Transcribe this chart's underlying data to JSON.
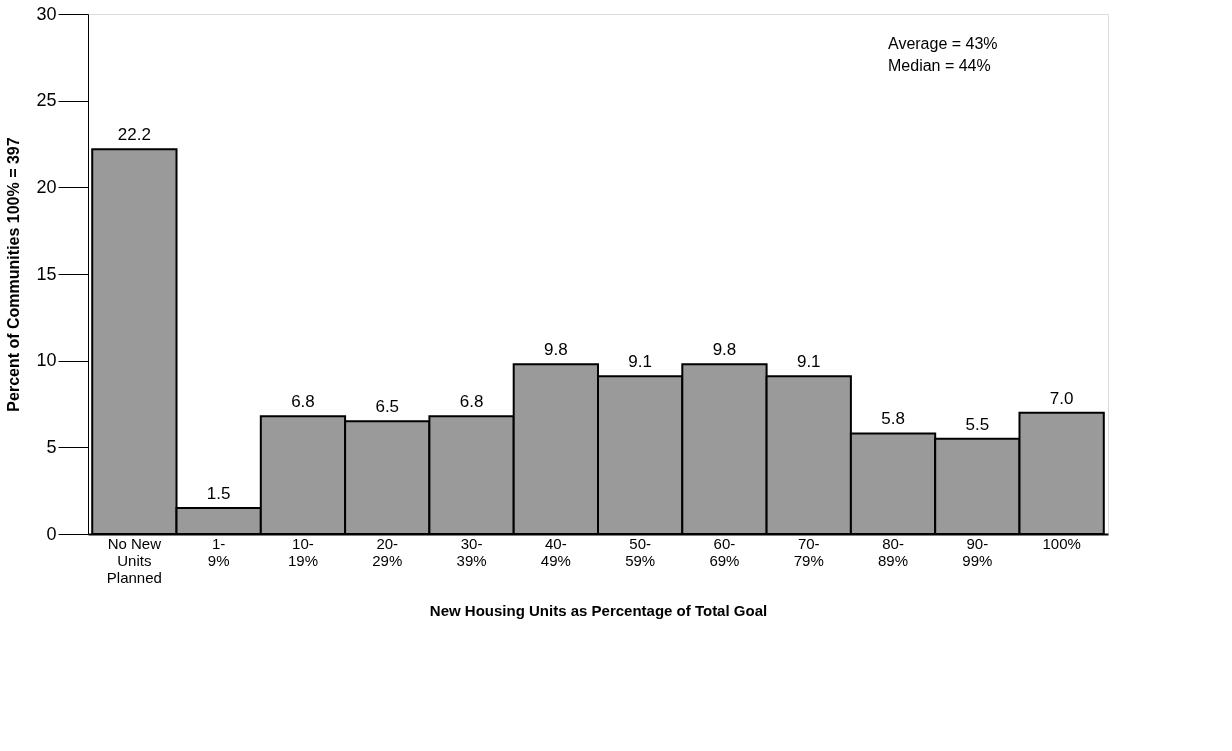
{
  "chart_data": {
    "type": "bar",
    "xlabel": "New Housing Units as Percentage of Total Goal",
    "ylabel": "Percent of Communities 100% = 397",
    "categories": [
      "No New\nUnits\nPlanned",
      "1-\n9%",
      "10-\n19%",
      "20-\n29%",
      "30-\n39%",
      "40-\n49%",
      "50-\n59%",
      "60-\n69%",
      "70-\n79%",
      "80-\n89%",
      "90-\n99%",
      "100%"
    ],
    "values": [
      22.2,
      1.5,
      6.8,
      6.5,
      6.8,
      9.8,
      9.1,
      9.8,
      9.1,
      5.8,
      5.5,
      7.0
    ],
    "color": "#9a9a9a",
    "ylim": [
      0,
      30
    ],
    "yticks": [
      0,
      5,
      10,
      15,
      20,
      25,
      30
    ],
    "grid": false,
    "value_labels": [
      "22.2",
      "1.5",
      "6.8",
      "6.5",
      "6.8",
      "9.8",
      "9.1",
      "9.8",
      "9.1",
      "5.8",
      "5.5",
      "7.0"
    ],
    "annotations": [
      "Average = 43%",
      "Median = 44%"
    ]
  }
}
